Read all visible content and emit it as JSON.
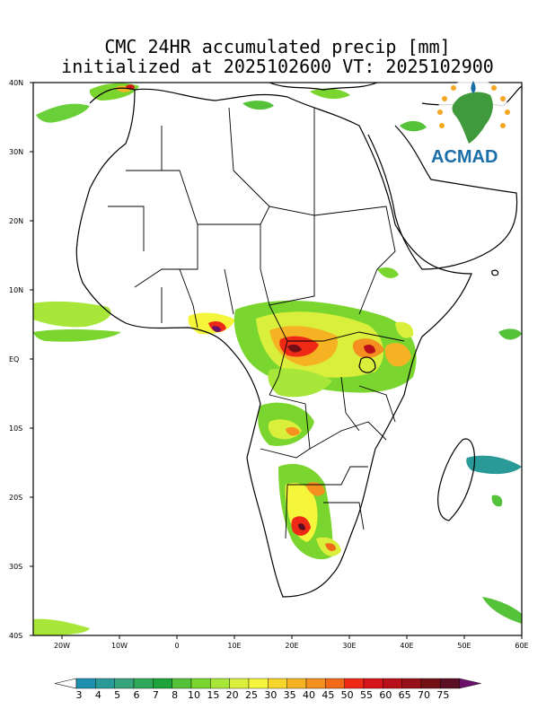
{
  "title": {
    "line1": "CMC 24HR accumulated precip [mm]",
    "line2": "initialized at 2025102600 VT: 2025102900"
  },
  "map": {
    "lat_labels": [
      "40N",
      "30N",
      "20N",
      "10N",
      "EQ",
      "10S",
      "20S",
      "30S",
      "40S"
    ],
    "lon_labels": [
      "20W",
      "10W",
      "0",
      "10E",
      "20E",
      "30E",
      "40E",
      "50E",
      "60E"
    ],
    "lat_range": [
      -40,
      40
    ],
    "lon_range": [
      -25,
      60
    ]
  },
  "logo": {
    "text": "ACMAD"
  },
  "legend": {
    "labels": [
      "3",
      "4",
      "5",
      "6",
      "7",
      "8",
      "10",
      "15",
      "20",
      "25",
      "30",
      "35",
      "40",
      "45",
      "50",
      "55",
      "60",
      "65",
      "70",
      "75"
    ],
    "colors": [
      "#1f8fb0",
      "#2a9a98",
      "#35a37c",
      "#2fa85a",
      "#1da33a",
      "#55c23a",
      "#7ad62e",
      "#a8e639",
      "#d9ef3c",
      "#f5f53c",
      "#f7d52b",
      "#f5b324",
      "#f58f1f",
      "#f06a1a",
      "#ee2a17",
      "#d8141b",
      "#b8101a",
      "#961019",
      "#721015",
      "#5a0f24",
      "#6a0f6a"
    ]
  }
}
